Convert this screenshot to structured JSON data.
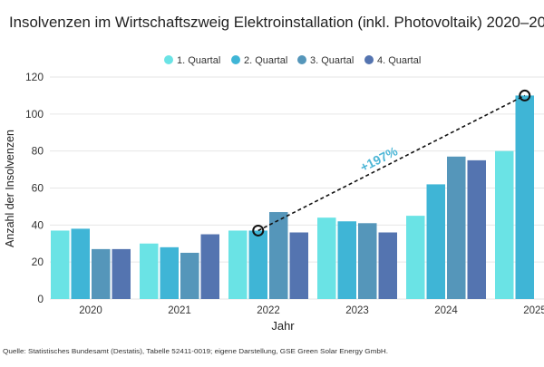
{
  "chart_data": {
    "type": "bar",
    "title": "Insolvenzen im Wirtschaftszweig Elektroinstallation (inkl. Photovoltaik) 2020–20",
    "xlabel": "Jahr",
    "ylabel": "Anzahl der Insolvenzen",
    "ylim": [
      0,
      120
    ],
    "yticks": [
      "0",
      "20",
      "40",
      "60",
      "80",
      "100",
      "120"
    ],
    "grid": true,
    "legend_position": "top",
    "categories": [
      "2020",
      "2021",
      "2022",
      "2023",
      "2024",
      "2025"
    ],
    "series": [
      {
        "name": "1. Quartal",
        "color": "#6ae3e5",
        "values": [
          37,
          30,
          37,
          44,
          45,
          80
        ]
      },
      {
        "name": "2. Quartal",
        "color": "#3fb5d6",
        "values": [
          38,
          28,
          37,
          42,
          62,
          110
        ]
      },
      {
        "name": "3. Quartal",
        "color": "#5596ba",
        "values": [
          27,
          25,
          47,
          41,
          77,
          null
        ]
      },
      {
        "name": "4. Quartal",
        "color": "#5474b0",
        "values": [
          27,
          35,
          36,
          36,
          75,
          null
        ]
      }
    ],
    "annotation": {
      "label": "+197%",
      "color": "#4db6d6",
      "from": {
        "category": "2022",
        "series": "2. Quartal",
        "value": 37
      },
      "to": {
        "category": "2025",
        "series": "2. Quartal",
        "value": 110
      }
    },
    "source": "Quelle: Statistisches Bundesamt (Destatis), Tabelle 52411-0019; eigene Darstellung, GSE Green Solar Energy GmbH."
  }
}
